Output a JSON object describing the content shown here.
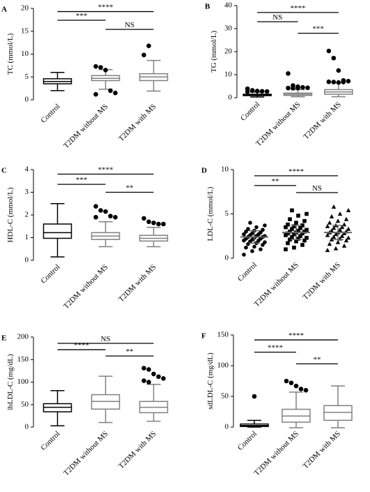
{
  "chart_data": [
    {
      "type": "box",
      "panel": "A",
      "ylabel": "TC (mmol/L)",
      "categories": [
        "Control",
        "T2DM without MS",
        "T2DM with MS"
      ],
      "colors": [
        "#000000",
        "#808080",
        "#808080"
      ],
      "ylim": [
        0,
        20
      ],
      "yticks": [
        0,
        5,
        10,
        15,
        20
      ],
      "boxes": [
        {
          "low": 2,
          "q1": 3.5,
          "median": 4,
          "q3": 4.6,
          "high": 6,
          "outliers": []
        },
        {
          "low": 2.3,
          "q1": 4.2,
          "median": 4.7,
          "q3": 5.3,
          "high": 6.6,
          "outliers": [
            7.3,
            7.1,
            6.5,
            2.0,
            1.5,
            1.2
          ]
        },
        {
          "low": 1.9,
          "q1": 4.2,
          "median": 5,
          "q3": 5.7,
          "high": 8.6,
          "outliers": [
            9.8,
            11.8
          ]
        }
      ],
      "comparisons": [
        {
          "pair": [
            0,
            2
          ],
          "y": 19.3,
          "label": "****"
        },
        {
          "pair": [
            0,
            1
          ],
          "y": 17.4,
          "label": "***"
        },
        {
          "pair": [
            1,
            2
          ],
          "y": 15.4,
          "label": "NS"
        }
      ]
    },
    {
      "type": "box",
      "panel": "B",
      "ylabel": "TG (mmol/L)",
      "categories": [
        "Control",
        "T2DM without MS",
        "T2DM with MS"
      ],
      "colors": [
        "#000000",
        "#808080",
        "#808080"
      ],
      "ylim": [
        0,
        40
      ],
      "yticks": [
        0,
        10,
        20,
        30,
        40
      ],
      "boxes": [
        {
          "low": 0.3,
          "q1": 0.9,
          "median": 1.2,
          "q3": 1.5,
          "high": 2.5,
          "outliers": [
            3.9,
            3.0,
            2.9,
            2.8,
            2.7,
            2.6,
            3.2
          ]
        },
        {
          "low": 0.4,
          "q1": 1,
          "median": 1.5,
          "q3": 2,
          "high": 3.5,
          "outliers": [
            10.5,
            5.3,
            4.8,
            4.5,
            4.3,
            4.2,
            4.1,
            4.2
          ]
        },
        {
          "low": 0.4,
          "q1": 1.5,
          "median": 2.5,
          "q3": 3.5,
          "high": 6.5,
          "outliers": [
            20.3,
            17.2,
            11.8,
            7.5,
            7.2,
            6.9,
            6.8,
            6.6,
            6.8
          ]
        }
      ],
      "comparisons": [
        {
          "pair": [
            0,
            2
          ],
          "y": 37,
          "label": "****"
        },
        {
          "pair": [
            0,
            1
          ],
          "y": 33,
          "label": "NS"
        },
        {
          "pair": [
            1,
            2
          ],
          "y": 28,
          "label": "***"
        }
      ]
    },
    {
      "type": "box",
      "panel": "C",
      "ylabel": "HDL-C (mmol/L)",
      "categories": [
        "Control",
        "T2DM without MS",
        "T2DM with MS"
      ],
      "colors": [
        "#000000",
        "#808080",
        "#808080"
      ],
      "ylim": [
        0,
        4
      ],
      "yticks": [
        0,
        1,
        2,
        3,
        4
      ],
      "boxes": [
        {
          "low": 0.15,
          "q1": 0.97,
          "median": 1.22,
          "q3": 1.6,
          "high": 2.5,
          "outliers": []
        },
        {
          "low": 0.6,
          "q1": 0.92,
          "median": 1.07,
          "q3": 1.22,
          "high": 1.7,
          "outliers": [
            2.38,
            2.2,
            2.15,
            1.95,
            1.9,
            1.9
          ]
        },
        {
          "low": 0.6,
          "q1": 0.85,
          "median": 0.97,
          "q3": 1.1,
          "high": 1.45,
          "outliers": [
            1.85,
            1.7,
            1.65,
            1.6,
            1.6
          ]
        }
      ],
      "comparisons": [
        {
          "pair": [
            0,
            2
          ],
          "y": 3.8,
          "label": "****"
        },
        {
          "pair": [
            0,
            1
          ],
          "y": 3.35,
          "label": "***"
        },
        {
          "pair": [
            1,
            2
          ],
          "y": 3.0,
          "label": "**"
        }
      ]
    },
    {
      "type": "dotplot",
      "panel": "D",
      "ylabel": "LDL-C (mmol/L)",
      "categories": [
        "Control",
        "T2DM without MS",
        "T2DM with MS"
      ],
      "markers": [
        "circle",
        "square",
        "triangle"
      ],
      "color": "#000000",
      "ylim": [
        0,
        10
      ],
      "yticks": [
        0,
        5,
        10
      ],
      "groups": [
        {
          "mean": 2.4,
          "sd": 0.7,
          "points": [
            0.4,
            0.8,
            1.0,
            1.2,
            1.3,
            1.5,
            1.6,
            1.7,
            1.8,
            1.9,
            2.0,
            2.0,
            2.1,
            2.2,
            2.2,
            2.3,
            2.4,
            2.4,
            2.5,
            2.5,
            2.6,
            2.7,
            2.7,
            2.8,
            2.9,
            3.0,
            3.1,
            3.2,
            3.3,
            3.5,
            3.7,
            4.0
          ]
        },
        {
          "mean": 2.9,
          "sd": 0.8,
          "points": [
            1.0,
            1.2,
            1.5,
            1.7,
            1.9,
            2.0,
            2.1,
            2.2,
            2.3,
            2.4,
            2.5,
            2.6,
            2.7,
            2.8,
            2.8,
            2.9,
            3.0,
            3.0,
            3.1,
            3.2,
            3.3,
            3.4,
            3.5,
            3.6,
            3.7,
            3.8,
            4.0,
            4.2,
            4.4,
            4.8,
            5.0,
            5.4
          ]
        },
        {
          "mean": 2.9,
          "sd": 0.8,
          "points": [
            0.9,
            1.1,
            1.4,
            1.6,
            1.8,
            2.0,
            2.1,
            2.2,
            2.3,
            2.4,
            2.5,
            2.6,
            2.7,
            2.8,
            2.9,
            2.9,
            3.0,
            3.1,
            3.2,
            3.3,
            3.4,
            3.5,
            3.6,
            3.7,
            3.8,
            4.0,
            4.2,
            4.4,
            4.7,
            5.0,
            5.4,
            5.8
          ]
        }
      ],
      "comparisons": [
        {
          "pair": [
            0,
            2
          ],
          "y": 9.3,
          "label": "****"
        },
        {
          "pair": [
            0,
            1
          ],
          "y": 8.2,
          "label": "**"
        },
        {
          "pair": [
            1,
            2
          ],
          "y": 7.4,
          "label": "NS"
        }
      ]
    },
    {
      "type": "box",
      "panel": "E",
      "ylabel": "lbLDL-C (mg/dL)",
      "categories": [
        "Control",
        "T2DM without MS",
        "T2DM with MS"
      ],
      "colors": [
        "#000000",
        "#808080",
        "#808080"
      ],
      "ylim": [
        0,
        200
      ],
      "yticks": [
        0,
        50,
        100,
        150,
        200
      ],
      "boxes": [
        {
          "low": 3,
          "q1": 34,
          "median": 44,
          "q3": 52,
          "high": 81,
          "outliers": []
        },
        {
          "low": 10,
          "q1": 40,
          "median": 57,
          "q3": 72,
          "high": 113,
          "outliers": []
        },
        {
          "low": 13,
          "q1": 32,
          "median": 44,
          "q3": 57,
          "high": 95,
          "outliers": [
            131,
            128,
            118,
            112,
            108,
            103,
            100
          ]
        }
      ],
      "comparisons": [
        {
          "pair": [
            0,
            2
          ],
          "y": 186,
          "label": "NS"
        },
        {
          "pair": [
            0,
            1
          ],
          "y": 172,
          "label": "****"
        },
        {
          "pair": [
            1,
            2
          ],
          "y": 158,
          "label": "**"
        }
      ]
    },
    {
      "type": "box",
      "panel": "F",
      "ylabel": "sdLDL-C (mg/dL)",
      "categories": [
        "Control",
        "T2DM without MS",
        "T2DM with MS"
      ],
      "colors": [
        "#000000",
        "#808080",
        "#808080"
      ],
      "ylim": [
        0,
        150
      ],
      "yticks": [
        0,
        50,
        100,
        150
      ],
      "boxes": [
        {
          "low": 0,
          "q1": 1,
          "median": 2.5,
          "q3": 5,
          "high": 11,
          "outliers": [
            50
          ]
        },
        {
          "low": -1,
          "q1": 8,
          "median": 18,
          "q3": 29,
          "high": 57,
          "outliers": [
            75,
            72,
            67,
            62,
            60
          ]
        },
        {
          "low": -1,
          "q1": 11,
          "median": 24,
          "q3": 35,
          "high": 67,
          "outliers": []
        }
      ],
      "comparisons": [
        {
          "pair": [
            0,
            2
          ],
          "y": 142,
          "label": "****"
        },
        {
          "pair": [
            0,
            1
          ],
          "y": 122,
          "label": "****"
        },
        {
          "pair": [
            1,
            2
          ],
          "y": 103,
          "label": "**"
        }
      ]
    }
  ]
}
